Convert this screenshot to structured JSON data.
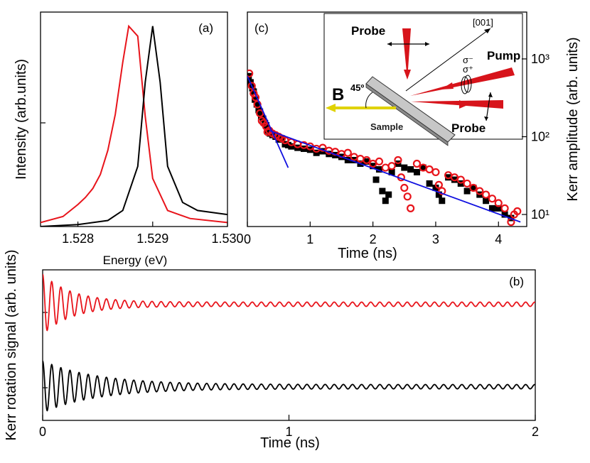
{
  "chart_data": [
    {
      "id": "a",
      "type": "line",
      "panel_label": "(a)",
      "xlabel": "Energy (eV)",
      "ylabel": "Intensity (arb.units)",
      "xlim": [
        1.5275,
        1.53
      ],
      "ylim": [
        0,
        1.07
      ],
      "x_ticks": [
        "1.528",
        "1.529",
        "1.530"
      ],
      "y_ticks": [],
      "series": [
        {
          "color": "#e8141b",
          "points": [
            [
              1.5275,
              0.02
            ],
            [
              1.5278,
              0.05
            ],
            [
              1.528,
              0.11
            ],
            [
              1.5281,
              0.145
            ],
            [
              1.5282,
              0.19
            ],
            [
              1.5283,
              0.26
            ],
            [
              1.5284,
              0.38
            ],
            [
              1.5285,
              0.56
            ],
            [
              1.5286,
              0.82
            ],
            [
              1.52868,
              1.0
            ],
            [
              1.5288,
              0.95
            ],
            [
              1.5289,
              0.55
            ],
            [
              1.529,
              0.24
            ],
            [
              1.5292,
              0.08
            ],
            [
              1.5295,
              0.04
            ],
            [
              1.53,
              0.02
            ]
          ]
        },
        {
          "color": "#000000",
          "points": [
            [
              1.5275,
              0.0
            ],
            [
              1.528,
              0.01
            ],
            [
              1.5284,
              0.03
            ],
            [
              1.5286,
              0.08
            ],
            [
              1.5288,
              0.3
            ],
            [
              1.5289,
              0.72
            ],
            [
              1.529,
              1.0
            ],
            [
              1.5291,
              0.72
            ],
            [
              1.5292,
              0.3
            ],
            [
              1.5294,
              0.12
            ],
            [
              1.5296,
              0.08
            ],
            [
              1.53,
              0.06
            ]
          ]
        }
      ]
    },
    {
      "id": "b",
      "type": "line",
      "panel_label": "(b)",
      "xlabel": "Time (ns)",
      "ylabel": "Kerr rotation signal (arb. units)",
      "xlim": [
        0,
        2
      ],
      "x_ticks": [
        "0",
        "1",
        "2"
      ],
      "series": [
        {
          "color": "#e8141b",
          "offset": 1.0,
          "amp0": 0.42,
          "amp_inf": 0.03,
          "decay_ns": 0.12,
          "period_ns": 0.037
        },
        {
          "color": "#000000",
          "offset": -0.15,
          "amp0": 0.36,
          "amp_inf": 0.03,
          "decay_ns": 0.22,
          "period_ns": 0.037
        }
      ]
    },
    {
      "id": "c",
      "type": "scatter",
      "panel_label": "(c)",
      "xlabel": "Time (ns)",
      "ylabel": "Kerr amplitude (arb. units)",
      "yscale": "log",
      "xlim": [
        0,
        4.45
      ],
      "ylim": [
        7,
        4000
      ],
      "x_ticks": [
        "0",
        "1",
        "2",
        "3",
        "4"
      ],
      "y_ticks": [
        "10¹",
        "10²",
        "10³"
      ],
      "fits": [
        {
          "color": "#1010e0",
          "x": [
            0.0,
            0.65
          ],
          "y": [
            600,
            40
          ]
        },
        {
          "color": "#1010e0",
          "x": [
            0.35,
            4.35
          ],
          "y": [
            120,
            8
          ]
        }
      ],
      "series": [
        {
          "marker": "filled-square",
          "color": "#000000",
          "points": [
            [
              0.02,
              600
            ],
            [
              0.05,
              500
            ],
            [
              0.08,
              420
            ],
            [
              0.1,
              380
            ],
            [
              0.12,
              300
            ],
            [
              0.15,
              260
            ],
            [
              0.18,
              220
            ],
            [
              0.2,
              210
            ],
            [
              0.22,
              180
            ],
            [
              0.25,
              170
            ],
            [
              0.28,
              150
            ],
            [
              0.3,
              140
            ],
            [
              0.33,
              120
            ],
            [
              0.36,
              110
            ],
            [
              0.4,
              105
            ],
            [
              0.45,
              100
            ],
            [
              0.5,
              92
            ],
            [
              0.55,
              95
            ],
            [
              0.6,
              80
            ],
            [
              0.65,
              78
            ],
            [
              0.7,
              75
            ],
            [
              0.8,
              72
            ],
            [
              0.9,
              70
            ],
            [
              1.0,
              68
            ],
            [
              1.1,
              62
            ],
            [
              1.2,
              65
            ],
            [
              1.3,
              60
            ],
            [
              1.4,
              58
            ],
            [
              1.5,
              55
            ],
            [
              1.6,
              50
            ],
            [
              1.7,
              50
            ],
            [
              1.8,
              45
            ],
            [
              1.9,
              48
            ],
            [
              2.0,
              42
            ],
            [
              2.05,
              28
            ],
            [
              2.1,
              38
            ],
            [
              2.15,
              20
            ],
            [
              2.2,
              15
            ],
            [
              2.25,
              18
            ],
            [
              2.3,
              35
            ],
            [
              2.4,
              45
            ],
            [
              2.5,
              40
            ],
            [
              2.6,
              38
            ],
            [
              2.7,
              35
            ],
            [
              2.8,
              40
            ],
            [
              2.9,
              25
            ],
            [
              3.0,
              22
            ],
            [
              3.05,
              18
            ],
            [
              3.1,
              15
            ],
            [
              3.2,
              30
            ],
            [
              3.3,
              28
            ],
            [
              3.4,
              25
            ],
            [
              3.5,
              20
            ],
            [
              3.6,
              22
            ],
            [
              3.7,
              18
            ],
            [
              3.8,
              15
            ],
            [
              3.9,
              12
            ],
            [
              4.0,
              12
            ],
            [
              4.1,
              10
            ],
            [
              4.2,
              9
            ]
          ]
        },
        {
          "marker": "open-circle",
          "color": "#e8141b",
          "points": [
            [
              0.03,
              650
            ],
            [
              0.07,
              450
            ],
            [
              0.1,
              360
            ],
            [
              0.13,
              320
            ],
            [
              0.16,
              260
            ],
            [
              0.2,
              200
            ],
            [
              0.23,
              160
            ],
            [
              0.26,
              150
            ],
            [
              0.3,
              135
            ],
            [
              0.32,
              115
            ],
            [
              0.35,
              120
            ],
            [
              0.4,
              110
            ],
            [
              0.45,
              105
            ],
            [
              0.5,
              100
            ],
            [
              0.55,
              95
            ],
            [
              0.6,
              90
            ],
            [
              0.7,
              85
            ],
            [
              0.8,
              80
            ],
            [
              0.9,
              78
            ],
            [
              1.0,
              75
            ],
            [
              1.1,
              70
            ],
            [
              1.2,
              72
            ],
            [
              1.3,
              66
            ],
            [
              1.4,
              64
            ],
            [
              1.5,
              60
            ],
            [
              1.6,
              62
            ],
            [
              1.7,
              55
            ],
            [
              1.8,
              52
            ],
            [
              1.9,
              50
            ],
            [
              2.0,
              45
            ],
            [
              2.1,
              48
            ],
            [
              2.2,
              40
            ],
            [
              2.3,
              42
            ],
            [
              2.4,
              50
            ],
            [
              2.45,
              30
            ],
            [
              2.5,
              22
            ],
            [
              2.55,
              17
            ],
            [
              2.6,
              12
            ],
            [
              2.7,
              45
            ],
            [
              2.8,
              40
            ],
            [
              2.9,
              38
            ],
            [
              3.0,
              35
            ],
            [
              3.05,
              24
            ],
            [
              3.1,
              20
            ],
            [
              3.2,
              32
            ],
            [
              3.3,
              30
            ],
            [
              3.4,
              28
            ],
            [
              3.5,
              25
            ],
            [
              3.6,
              22
            ],
            [
              3.7,
              20
            ],
            [
              3.8,
              18
            ],
            [
              3.9,
              16
            ],
            [
              4.0,
              14
            ],
            [
              4.1,
              12
            ],
            [
              4.2,
              8
            ],
            [
              4.25,
              10
            ],
            [
              4.3,
              11
            ]
          ]
        }
      ]
    }
  ],
  "inset": {
    "probe_top": "Probe",
    "pump": "Pump",
    "probe_bottom": "Probe",
    "field": "B",
    "angle": "45º",
    "axis": "[001]",
    "sigma_minus": "σ⁻",
    "sigma_plus": "σ⁺",
    "sample": "Sample"
  }
}
